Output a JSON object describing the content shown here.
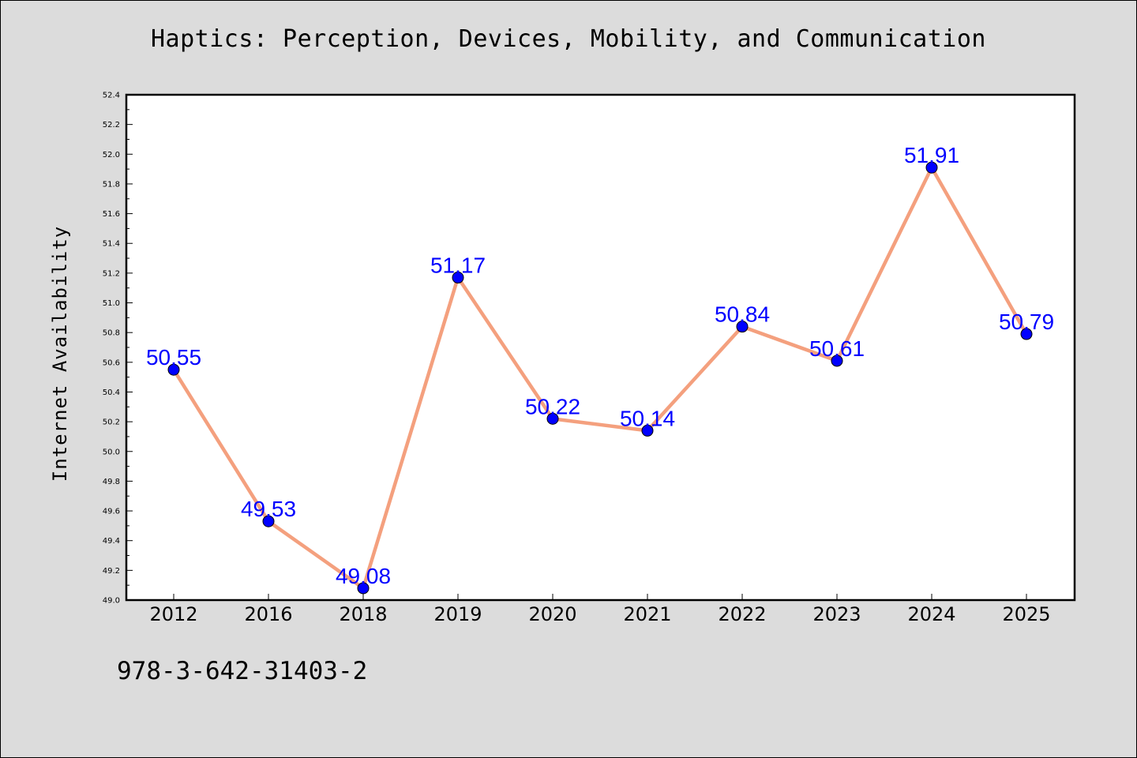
{
  "title": "Haptics: Perception, Devices, Mobility, and Communication",
  "footer_text": "978-3-642-31403-2",
  "chart_data": {
    "type": "line",
    "title": "Haptics: Perception, Devices, Mobility, and Communication",
    "xlabel": "",
    "ylabel": "Internet Availability",
    "categories": [
      "2012",
      "2016",
      "2018",
      "2019",
      "2020",
      "2021",
      "2022",
      "2023",
      "2024",
      "2025"
    ],
    "values": [
      50.55,
      49.53,
      49.08,
      51.17,
      50.22,
      50.14,
      50.84,
      50.61,
      51.91,
      50.79
    ],
    "value_labels": [
      "50.55",
      "49.53",
      "49.08",
      "51.17",
      "50.22",
      "50.14",
      "50.84",
      "50.61",
      "51.91",
      "50.79"
    ],
    "ylim": [
      49.0,
      52.4
    ],
    "yticks": [
      "49.0",
      "49.2",
      "49.4",
      "49.6",
      "49.8",
      "50.0",
      "50.2",
      "50.4",
      "50.6",
      "50.8",
      "51.0",
      "51.2",
      "51.4",
      "51.6",
      "51.8",
      "52.0",
      "52.2",
      "52.4"
    ],
    "grid": false,
    "legend": "none",
    "colors": {
      "line": "#f4a07e",
      "marker": "#0000ff",
      "data_label": "#0000ff",
      "background": "#dcdcdc",
      "plot_background": "#ffffff"
    }
  }
}
